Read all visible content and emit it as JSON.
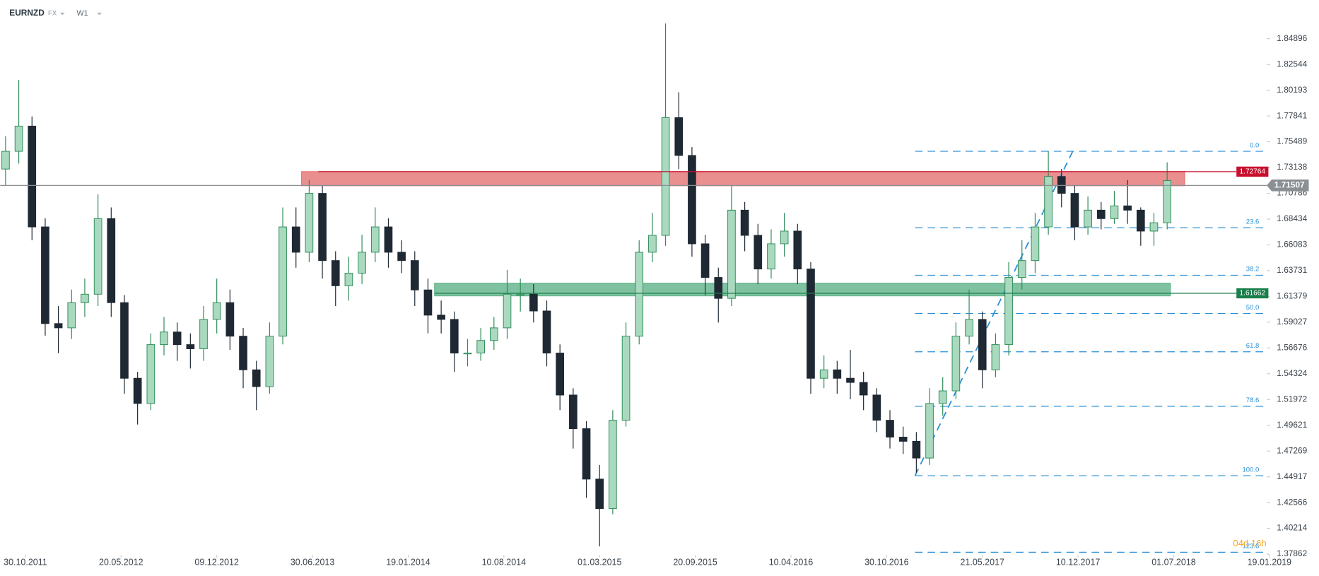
{
  "header": {
    "symbol": "EURNZD",
    "market": "FX",
    "timeframe": "W1"
  },
  "chart_data": {
    "type": "candlestick",
    "up_color": "#a9d9bf",
    "up_border": "#2e8b57",
    "down_color": "#1f2933",
    "xlim": [
      -7.65,
      380
    ],
    "ylim": [
      1.36251,
      1.88425
    ],
    "xticks": [
      {
        "value": 0,
        "label": "30.10.2011"
      },
      {
        "value": 29,
        "label": "20.05.2012"
      },
      {
        "value": 58,
        "label": "09.12.2012"
      },
      {
        "value": 87,
        "label": "30.06.2013"
      },
      {
        "value": 116,
        "label": "19.01.2014"
      },
      {
        "value": 145,
        "label": "10.08.2014"
      },
      {
        "value": 174,
        "label": "01.03.2015"
      },
      {
        "value": 203,
        "label": "20.09.2015"
      },
      {
        "value": 232,
        "label": "10.04.2016"
      },
      {
        "value": 261,
        "label": "30.10.2016"
      },
      {
        "value": 290,
        "label": "21.05.2017"
      },
      {
        "value": 319,
        "label": "10.12.2017"
      },
      {
        "value": 348,
        "label": "01.07.2018"
      },
      {
        "value": 377,
        "label": "19.01.2019"
      }
    ],
    "yticks": [
      1.84896,
      1.82544,
      1.80193,
      1.77841,
      1.75489,
      1.73138,
      1.70786,
      1.68434,
      1.66083,
      1.63731,
      1.61379,
      1.59027,
      1.56676,
      1.54324,
      1.51972,
      1.49621,
      1.47269,
      1.44917,
      1.42566,
      1.40214,
      1.37862
    ],
    "x": [
      -6,
      -2,
      2,
      6,
      10,
      14,
      18,
      22,
      26,
      30,
      34,
      38,
      42,
      46,
      50,
      54,
      58,
      62,
      66,
      70,
      74,
      78,
      82,
      86,
      90,
      94,
      98,
      102,
      106,
      110,
      114,
      118,
      122,
      126,
      130,
      134,
      138,
      142,
      146,
      150,
      154,
      158,
      162,
      166,
      170,
      174,
      178,
      182,
      186,
      190,
      194,
      198,
      202,
      206,
      210,
      214,
      218,
      222,
      226,
      230,
      234,
      238,
      242,
      246,
      250,
      254,
      258,
      262,
      266,
      270,
      274,
      278,
      282,
      286,
      290,
      294,
      298,
      302,
      306,
      310,
      314,
      318,
      322,
      326,
      330,
      334,
      338,
      342,
      346
    ],
    "open": [
      1.73,
      1.7462,
      1.7692,
      1.6772,
      1.589,
      1.5851,
      1.6081,
      1.6158,
      1.6848,
      1.6081,
      1.5391,
      1.5161,
      1.5698,
      1.5813,
      1.5698,
      1.566,
      1.5928,
      1.6081,
      1.5775,
      1.5468,
      1.5315,
      1.5775,
      1.6772,
      1.6541,
      1.7078,
      1.6465,
      1.6235,
      1.635,
      1.6541,
      1.6772,
      1.6541,
      1.6465,
      1.6197,
      1.5967,
      1.5928,
      1.5621,
      1.5621,
      1.5736,
      1.5851,
      1.6158,
      1.6158,
      1.6005,
      1.5621,
      1.5238,
      1.4931,
      1.4471,
      1.4202,
      1.5008,
      1.5775,
      1.6541,
      1.6695,
      1.7769,
      1.7424,
      1.6618,
      1.6311,
      1.612,
      1.6925,
      1.6695,
      1.6388,
      1.6618,
      1.6734,
      1.6388,
      1.5391,
      1.5468,
      1.5391,
      1.5353,
      1.5238,
      1.5008,
      1.4854,
      1.4816,
      1.4663,
      1.5161,
      1.5276,
      1.5775,
      1.5928,
      1.5468,
      1.5698,
      1.6311,
      1.6465,
      1.6772,
      1.7232,
      1.7078,
      1.6772,
      1.6925,
      1.6848,
      1.6964,
      1.6925,
      1.6734,
      1.681
    ],
    "high": [
      1.76,
      1.8114,
      1.778,
      1.685,
      1.605,
      1.62,
      1.63,
      1.707,
      1.695,
      1.615,
      1.545,
      1.58,
      1.595,
      1.59,
      1.58,
      1.605,
      1.63,
      1.62,
      1.585,
      1.555,
      1.59,
      1.695,
      1.695,
      1.72,
      1.715,
      1.655,
      1.65,
      1.67,
      1.695,
      1.685,
      1.665,
      1.655,
      1.63,
      1.61,
      1.6,
      1.575,
      1.585,
      1.595,
      1.638,
      1.63,
      1.625,
      1.61,
      1.57,
      1.53,
      1.5,
      1.46,
      1.51,
      1.59,
      1.665,
      1.69,
      1.8628,
      1.8,
      1.75,
      1.67,
      1.64,
      1.715,
      1.7,
      1.68,
      1.675,
      1.69,
      1.68,
      1.645,
      1.56,
      1.555,
      1.565,
      1.545,
      1.53,
      1.51,
      1.495,
      1.49,
      1.53,
      1.54,
      1.59,
      1.62,
      1.6,
      1.58,
      1.645,
      1.665,
      1.69,
      1.7462,
      1.73,
      1.715,
      1.705,
      1.7,
      1.71,
      1.72,
      1.695,
      1.69,
      1.7362
    ],
    "low": [
      1.715,
      1.735,
      1.665,
      1.578,
      1.562,
      1.575,
      1.595,
      1.605,
      1.595,
      1.525,
      1.4969,
      1.51,
      1.56,
      1.555,
      1.548,
      1.555,
      1.58,
      1.565,
      1.53,
      1.51,
      1.525,
      1.57,
      1.64,
      1.645,
      1.63,
      1.605,
      1.61,
      1.625,
      1.645,
      1.64,
      1.635,
      1.605,
      1.58,
      1.58,
      1.545,
      1.55,
      1.555,
      1.565,
      1.575,
      1.6,
      1.59,
      1.55,
      1.51,
      1.475,
      1.43,
      1.3857,
      1.415,
      1.495,
      1.57,
      1.645,
      1.66,
      1.73,
      1.65,
      1.615,
      1.59,
      1.605,
      1.655,
      1.625,
      1.63,
      1.65,
      1.625,
      1.525,
      1.53,
      1.525,
      1.52,
      1.51,
      1.49,
      1.475,
      1.47,
      1.453,
      1.46,
      1.505,
      1.52,
      1.57,
      1.53,
      1.54,
      1.56,
      1.62,
      1.635,
      1.67,
      1.695,
      1.665,
      1.67,
      1.675,
      1.68,
      1.68,
      1.66,
      1.66,
      1.675
    ],
    "close": [
      1.7462,
      1.7692,
      1.6772,
      1.589,
      1.5851,
      1.6081,
      1.6158,
      1.6848,
      1.6081,
      1.5391,
      1.5161,
      1.5698,
      1.5813,
      1.5698,
      1.566,
      1.5928,
      1.6081,
      1.5775,
      1.5468,
      1.5315,
      1.5775,
      1.6772,
      1.6541,
      1.7078,
      1.6465,
      1.6235,
      1.635,
      1.6541,
      1.6772,
      1.6541,
      1.6465,
      1.6197,
      1.5967,
      1.5928,
      1.5621,
      1.5621,
      1.5736,
      1.5851,
      1.6158,
      1.6158,
      1.6005,
      1.5621,
      1.5238,
      1.4931,
      1.4471,
      1.4202,
      1.5008,
      1.5775,
      1.6541,
      1.6695,
      1.7769,
      1.7424,
      1.6618,
      1.6311,
      1.612,
      1.6925,
      1.6695,
      1.6388,
      1.6618,
      1.6734,
      1.6388,
      1.5391,
      1.5468,
      1.5391,
      1.5353,
      1.5238,
      1.5008,
      1.4854,
      1.4816,
      1.4663,
      1.5161,
      1.5276,
      1.5775,
      1.5928,
      1.5468,
      1.5698,
      1.6311,
      1.6465,
      1.6772,
      1.7232,
      1.7078,
      1.6772,
      1.6925,
      1.6848,
      1.6964,
      1.6925,
      1.6734,
      1.681,
      1.7194
    ],
    "zones": [
      {
        "x_from": 83.7,
        "x_to": 351.3,
        "low": 1.7148,
        "high": 1.72764,
        "color": "#e57373"
      },
      {
        "x_from": 124,
        "x_to": 347,
        "low": 1.6143,
        "high": 1.6258,
        "color": "#5fb38a"
      }
    ],
    "levels": [
      {
        "price": 1.72764,
        "x_from": 88.8,
        "color": "#c8102e"
      },
      {
        "price": 1.61662,
        "x_from": 124,
        "color": "#1a7f4b"
      },
      {
        "price": 1.71507,
        "x_from": -7.65,
        "color": "#8a8f94"
      }
    ],
    "fib": {
      "high": 1.7462,
      "low": 1.4502,
      "x_from": 269.6,
      "color": "#2a8fd6",
      "levels": [
        {
          "value": 0,
          "label": "0.0"
        },
        23.6,
        38.2,
        {
          "value": 50,
          "label": "50.0"
        },
        61.8,
        78.6,
        {
          "value": 100,
          "label": "100.0"
        },
        123.6
      ]
    },
    "trend_line": {
      "x": [
        269.6,
        318
      ],
      "y": [
        1.4502,
        1.75
      ],
      "color": "#2a8fd6"
    },
    "countdown": "04d 16h"
  }
}
